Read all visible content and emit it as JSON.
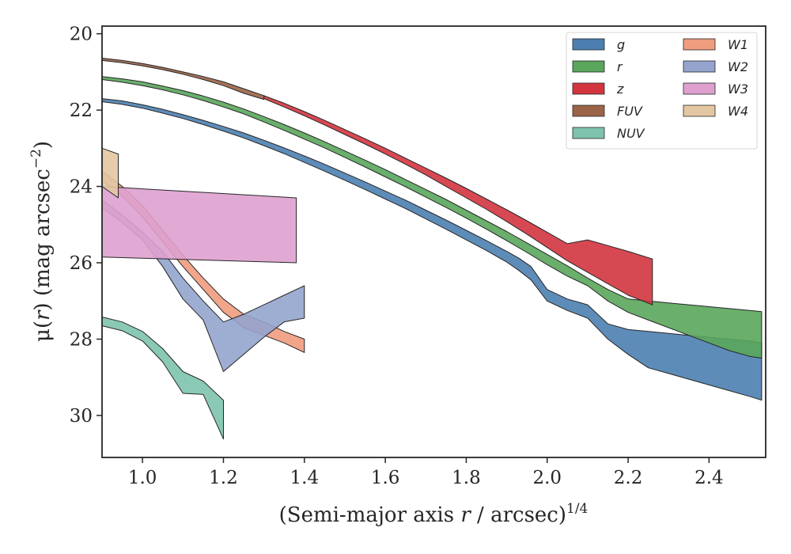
{
  "chart_data": {
    "type": "area",
    "title": "",
    "xlabel": {
      "prefix": "(Semi-major axis ",
      "var": "r",
      "suffix": " / arcsec)",
      "sup": "1/4"
    },
    "ylabel": {
      "prefix": "μ(",
      "var": "r",
      "suffix": ") (mag arcsec",
      "sup": "−2",
      "close": ")"
    },
    "xlim": [
      0.9,
      2.54
    ],
    "ylim": [
      31.1,
      19.8
    ],
    "y_inverted": true,
    "xticks": [
      "1.0",
      "1.2",
      "1.4",
      "1.6",
      "1.8",
      "2.0",
      "2.2",
      "2.4"
    ],
    "yticks": [
      "20",
      "22",
      "24",
      "26",
      "28",
      "30"
    ],
    "grid": false,
    "legend": {
      "placement": "top-right",
      "columns": 2
    },
    "series": [
      {
        "name": "g",
        "color": "#4c7fb0",
        "x": [
          0.9,
          0.95,
          1.0,
          1.05,
          1.1,
          1.15,
          1.2,
          1.25,
          1.3,
          1.35,
          1.4,
          1.45,
          1.5,
          1.55,
          1.6,
          1.65,
          1.7,
          1.75,
          1.8,
          1.85,
          1.9,
          1.93,
          1.96,
          2.0,
          2.05,
          2.1,
          2.15,
          2.2,
          2.25,
          2.3,
          2.35,
          2.4,
          2.45,
          2.5,
          2.53
        ],
        "lo": [
          21.7,
          21.76,
          21.86,
          21.98,
          22.12,
          22.27,
          22.43,
          22.6,
          22.79,
          22.99,
          23.2,
          23.42,
          23.65,
          23.88,
          24.12,
          24.36,
          24.62,
          24.88,
          25.15,
          25.42,
          25.7,
          25.88,
          26.1,
          26.7,
          26.95,
          27.1,
          27.6,
          27.75,
          27.8,
          27.85,
          27.9,
          27.95,
          28.0,
          28.05,
          28.1
        ],
        "hi": [
          21.78,
          21.85,
          21.95,
          22.08,
          22.22,
          22.38,
          22.55,
          22.73,
          22.93,
          23.14,
          23.37,
          23.6,
          23.84,
          24.08,
          24.33,
          24.58,
          24.85,
          25.12,
          25.4,
          25.68,
          25.98,
          26.2,
          26.45,
          27.0,
          27.25,
          27.45,
          28.0,
          28.4,
          28.75,
          28.9,
          29.05,
          29.2,
          29.35,
          29.5,
          29.6
        ]
      },
      {
        "name": "r",
        "color": "#5aa65c",
        "x": [
          0.9,
          0.95,
          1.0,
          1.05,
          1.1,
          1.15,
          1.2,
          1.25,
          1.3,
          1.35,
          1.4,
          1.45,
          1.5,
          1.55,
          1.6,
          1.65,
          1.7,
          1.75,
          1.8,
          1.85,
          1.9,
          1.95,
          2.0,
          2.05,
          2.1,
          2.15,
          2.2,
          2.25,
          2.3,
          2.35,
          2.4,
          2.45,
          2.5,
          2.53
        ],
        "lo": [
          21.12,
          21.18,
          21.26,
          21.37,
          21.49,
          21.63,
          21.79,
          21.97,
          22.17,
          22.38,
          22.6,
          22.83,
          23.07,
          23.31,
          23.56,
          23.82,
          24.08,
          24.34,
          24.62,
          24.9,
          25.18,
          25.48,
          25.78,
          26.08,
          26.4,
          26.7,
          26.95,
          27.0,
          27.05,
          27.1,
          27.15,
          27.2,
          27.25,
          27.28
        ],
        "hi": [
          21.2,
          21.27,
          21.36,
          21.47,
          21.6,
          21.75,
          21.92,
          22.1,
          22.31,
          22.53,
          22.76,
          22.99,
          23.24,
          23.49,
          23.75,
          24.01,
          24.28,
          24.55,
          24.83,
          25.12,
          25.42,
          25.73,
          26.05,
          26.35,
          26.6,
          27.0,
          27.3,
          27.5,
          27.7,
          27.9,
          28.1,
          28.3,
          28.45,
          28.5
        ]
      },
      {
        "name": "z",
        "color": "#d3353f",
        "x": [
          1.3,
          1.35,
          1.4,
          1.45,
          1.5,
          1.55,
          1.6,
          1.65,
          1.7,
          1.75,
          1.8,
          1.85,
          1.9,
          1.95,
          2.0,
          2.05,
          2.1,
          2.15,
          2.2,
          2.26
        ],
        "lo": [
          21.62,
          21.82,
          22.04,
          22.27,
          22.51,
          22.75,
          23.0,
          23.26,
          23.52,
          23.78,
          24.05,
          24.33,
          24.61,
          24.9,
          25.2,
          25.5,
          25.4,
          25.55,
          25.7,
          25.9
        ],
        "hi": [
          21.7,
          21.92,
          22.15,
          22.39,
          22.64,
          22.89,
          23.15,
          23.42,
          23.7,
          24.0,
          24.3,
          24.6,
          24.92,
          25.25,
          25.6,
          25.95,
          26.25,
          26.55,
          26.85,
          27.1
        ]
      },
      {
        "name": "FUV",
        "color": "#9b6448",
        "x": [
          0.9,
          0.95,
          1.0,
          1.05,
          1.1,
          1.15,
          1.2,
          1.25,
          1.3
        ],
        "lo": [
          20.64,
          20.7,
          20.78,
          20.88,
          21.0,
          21.12,
          21.26,
          21.44,
          21.62
        ],
        "hi": [
          20.7,
          20.76,
          20.84,
          20.94,
          21.06,
          21.2,
          21.36,
          21.56,
          21.72
        ]
      },
      {
        "name": "NUV",
        "color": "#7dc3ad",
        "x": [
          0.9,
          0.95,
          1.0,
          1.05,
          1.1,
          1.15,
          1.2
        ],
        "lo": [
          27.42,
          27.55,
          27.8,
          28.25,
          28.85,
          29.1,
          29.6
        ],
        "hi": [
          27.65,
          27.78,
          28.05,
          28.6,
          29.42,
          29.45,
          30.62
        ]
      },
      {
        "name": "W1",
        "color": "#ef9c7f",
        "x": [
          0.9,
          0.95,
          1.0,
          1.05,
          1.1,
          1.15,
          1.2,
          1.25,
          1.3,
          1.35,
          1.4
        ],
        "lo": [
          23.6,
          24.0,
          24.5,
          25.15,
          25.8,
          26.4,
          26.95,
          27.35,
          27.55,
          27.8,
          28.0
        ],
        "hi": [
          23.85,
          24.25,
          24.8,
          25.45,
          26.1,
          26.7,
          27.3,
          27.7,
          27.9,
          28.1,
          28.35
        ]
      },
      {
        "name": "W2",
        "color": "#94a4cd",
        "x": [
          0.9,
          0.95,
          1.0,
          1.05,
          1.1,
          1.15,
          1.2,
          1.25,
          1.3,
          1.35,
          1.4
        ],
        "lo": [
          24.35,
          24.75,
          25.2,
          25.7,
          26.4,
          27.0,
          27.55,
          27.35,
          27.1,
          26.85,
          26.6
        ],
        "hi": [
          24.55,
          24.95,
          25.4,
          26.1,
          26.95,
          27.5,
          28.85,
          28.4,
          27.95,
          27.55,
          27.45
        ]
      },
      {
        "name": "W3",
        "color": "#dea1cf",
        "x": [
          0.9,
          1.38
        ],
        "lo": [
          24.0,
          24.3
        ],
        "hi": [
          25.85,
          26.0
        ]
      },
      {
        "name": "W4",
        "color": "#e3c6a2",
        "x": [
          0.9,
          0.94
        ],
        "lo": [
          23.0,
          23.15
        ],
        "hi": [
          24.0,
          24.3
        ]
      }
    ]
  }
}
